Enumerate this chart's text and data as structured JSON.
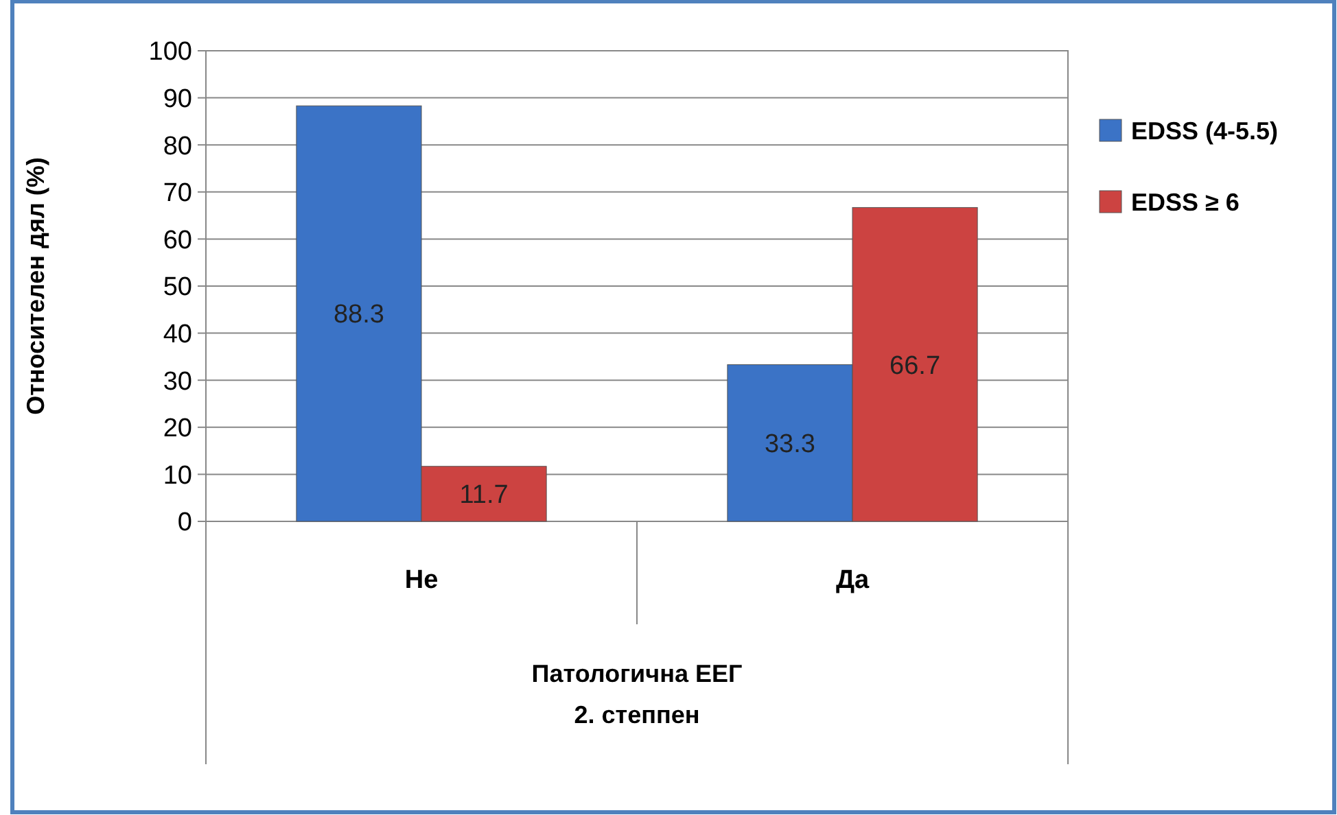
{
  "chart_data": {
    "type": "bar",
    "ylabel": "Относителен дял (%)",
    "xlabel": "Патологична ЕЕГ\n2. степпен",
    "categories": [
      "Не",
      "Да"
    ],
    "series": [
      {
        "name": "EDSS (4-5.5)",
        "color": "#3b73c6",
        "values": [
          88.3,
          33.3
        ]
      },
      {
        "name": "EDSS ≥ 6",
        "color": "#cc4341",
        "values": [
          11.7,
          66.7
        ]
      }
    ],
    "ylim": [
      0,
      100
    ],
    "yticks": [
      0,
      10,
      20,
      30,
      40,
      50,
      60,
      70,
      80,
      90,
      100
    ],
    "grid": "y",
    "legend": "right",
    "data_labels": true
  }
}
